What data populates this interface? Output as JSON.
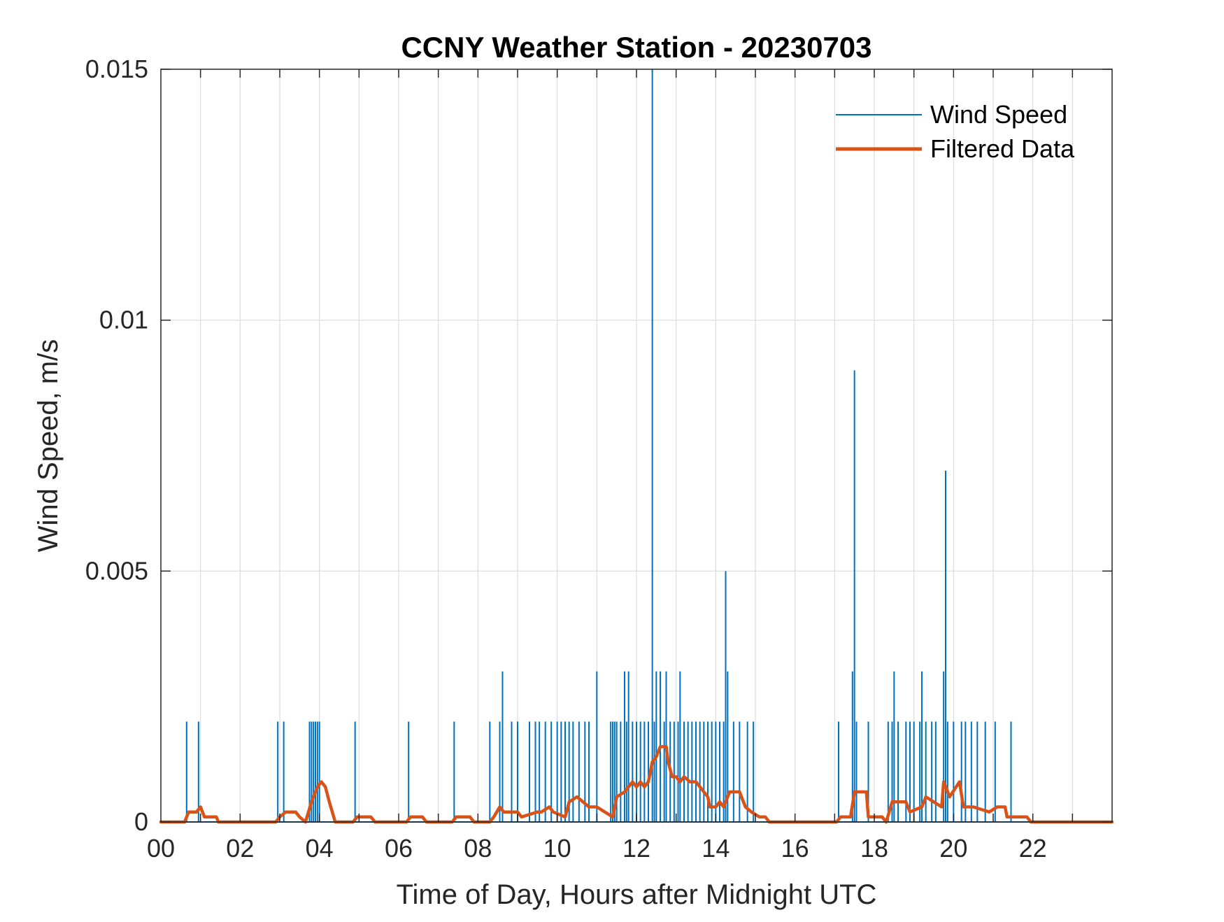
{
  "chart_data": {
    "type": "line",
    "title": "CCNY Weather Station - 20230703",
    "xlabel": "Time of Day, Hours after Midnight UTC",
    "ylabel": "Wind Speed, m/s",
    "xlim": [
      0,
      24
    ],
    "ylim": [
      0,
      0.015
    ],
    "x_ticks": [
      0,
      2,
      4,
      6,
      8,
      10,
      12,
      14,
      16,
      18,
      20,
      22
    ],
    "x_tick_labels": [
      "00",
      "02",
      "04",
      "06",
      "08",
      "10",
      "12",
      "14",
      "16",
      "18",
      "20",
      "22"
    ],
    "y_ticks": [
      0,
      0.005,
      0.01,
      0.015
    ],
    "y_tick_labels": [
      "0",
      "0.005",
      "0.01",
      "0.015"
    ],
    "grid": true,
    "legend_position": "top-right",
    "series": [
      {
        "name": "Wind Speed",
        "color": "#0072BD",
        "style": "thin-spikes",
        "spikes": [
          [
            0.65,
            0.002
          ],
          [
            0.95,
            0.002
          ],
          [
            2.95,
            0.002
          ],
          [
            3.1,
            0.002
          ],
          [
            3.75,
            0.002
          ],
          [
            3.8,
            0.002
          ],
          [
            3.85,
            0.002
          ],
          [
            3.9,
            0.002
          ],
          [
            3.95,
            0.002
          ],
          [
            4.0,
            0.002
          ],
          [
            4.9,
            0.002
          ],
          [
            6.25,
            0.002
          ],
          [
            7.4,
            0.002
          ],
          [
            8.3,
            0.002
          ],
          [
            8.55,
            0.002
          ],
          [
            8.62,
            0.003
          ],
          [
            8.85,
            0.002
          ],
          [
            9.0,
            0.002
          ],
          [
            9.3,
            0.002
          ],
          [
            9.45,
            0.002
          ],
          [
            9.55,
            0.002
          ],
          [
            9.7,
            0.002
          ],
          [
            9.85,
            0.002
          ],
          [
            10.0,
            0.002
          ],
          [
            10.1,
            0.002
          ],
          [
            10.2,
            0.002
          ],
          [
            10.3,
            0.002
          ],
          [
            10.4,
            0.002
          ],
          [
            10.55,
            0.002
          ],
          [
            10.7,
            0.002
          ],
          [
            10.8,
            0.002
          ],
          [
            11.0,
            0.003
          ],
          [
            11.35,
            0.002
          ],
          [
            11.4,
            0.002
          ],
          [
            11.45,
            0.002
          ],
          [
            11.5,
            0.002
          ],
          [
            11.6,
            0.002
          ],
          [
            11.7,
            0.003
          ],
          [
            11.75,
            0.002
          ],
          [
            11.8,
            0.003
          ],
          [
            11.9,
            0.002
          ],
          [
            12.0,
            0.002
          ],
          [
            12.1,
            0.002
          ],
          [
            12.2,
            0.002
          ],
          [
            12.3,
            0.002
          ],
          [
            12.4,
            0.015
          ],
          [
            12.45,
            0.002
          ],
          [
            12.5,
            0.003
          ],
          [
            12.6,
            0.003
          ],
          [
            12.7,
            0.002
          ],
          [
            12.75,
            0.003
          ],
          [
            12.85,
            0.002
          ],
          [
            12.95,
            0.002
          ],
          [
            13.05,
            0.002
          ],
          [
            13.1,
            0.003
          ],
          [
            13.2,
            0.002
          ],
          [
            13.3,
            0.002
          ],
          [
            13.4,
            0.002
          ],
          [
            13.5,
            0.002
          ],
          [
            13.6,
            0.002
          ],
          [
            13.7,
            0.002
          ],
          [
            13.8,
            0.002
          ],
          [
            13.9,
            0.002
          ],
          [
            14.0,
            0.002
          ],
          [
            14.1,
            0.002
          ],
          [
            14.2,
            0.002
          ],
          [
            14.25,
            0.005
          ],
          [
            14.3,
            0.003
          ],
          [
            14.45,
            0.002
          ],
          [
            14.6,
            0.002
          ],
          [
            14.8,
            0.002
          ],
          [
            14.95,
            0.002
          ],
          [
            17.1,
            0.002
          ],
          [
            17.45,
            0.003
          ],
          [
            17.5,
            0.009
          ],
          [
            17.55,
            0.002
          ],
          [
            17.85,
            0.002
          ],
          [
            18.35,
            0.002
          ],
          [
            18.45,
            0.002
          ],
          [
            18.5,
            0.003
          ],
          [
            18.6,
            0.002
          ],
          [
            18.8,
            0.002
          ],
          [
            18.9,
            0.002
          ],
          [
            19.0,
            0.002
          ],
          [
            19.15,
            0.002
          ],
          [
            19.2,
            0.003
          ],
          [
            19.3,
            0.002
          ],
          [
            19.45,
            0.002
          ],
          [
            19.55,
            0.002
          ],
          [
            19.75,
            0.003
          ],
          [
            19.8,
            0.007
          ],
          [
            19.85,
            0.002
          ],
          [
            20.0,
            0.002
          ],
          [
            20.2,
            0.002
          ],
          [
            20.3,
            0.002
          ],
          [
            20.45,
            0.002
          ],
          [
            20.6,
            0.002
          ],
          [
            20.8,
            0.002
          ],
          [
            21.05,
            0.002
          ],
          [
            21.45,
            0.002
          ]
        ]
      },
      {
        "name": "Filtered Data",
        "color": "#D95319",
        "style": "thick-line",
        "x": [
          0.0,
          0.6,
          0.7,
          0.9,
          1.0,
          1.1,
          1.4,
          1.45,
          2.9,
          3.0,
          3.15,
          3.4,
          3.5,
          3.65,
          3.8,
          3.95,
          4.05,
          4.15,
          4.25,
          4.4,
          4.5,
          4.85,
          4.95,
          5.3,
          5.4,
          6.2,
          6.3,
          6.6,
          6.7,
          7.35,
          7.45,
          7.8,
          7.9,
          8.3,
          8.4,
          8.55,
          8.65,
          9.0,
          9.1,
          9.5,
          9.6,
          9.8,
          9.9,
          10.2,
          10.3,
          10.5,
          10.8,
          11.0,
          11.2,
          11.4,
          11.5,
          11.7,
          11.8,
          11.9,
          12.0,
          12.1,
          12.2,
          12.3,
          12.4,
          12.5,
          12.6,
          12.75,
          12.8,
          12.9,
          13.0,
          13.1,
          13.2,
          13.35,
          13.5,
          13.6,
          13.7,
          13.8,
          13.85,
          14.0,
          14.1,
          14.2,
          14.35,
          14.55,
          14.6,
          14.75,
          14.9,
          15.1,
          15.25,
          15.35,
          17.05,
          17.15,
          17.4,
          17.5,
          17.8,
          17.85,
          18.2,
          18.3,
          18.45,
          18.8,
          18.9,
          19.2,
          19.3,
          19.5,
          19.7,
          19.75,
          19.9,
          20.15,
          20.25,
          20.5,
          20.9,
          21.1,
          21.3,
          21.35,
          21.85,
          21.95,
          24.0
        ],
        "y": [
          0.0,
          0.0,
          0.0002,
          0.0002,
          0.0003,
          0.0001,
          0.0001,
          0.0,
          0.0,
          0.0001,
          0.0002,
          0.0002,
          0.0001,
          0.0,
          0.0004,
          0.0007,
          0.0008,
          0.0007,
          0.0004,
          0.0,
          0.0,
          0.0,
          0.0001,
          0.0001,
          0.0,
          0.0,
          0.0001,
          0.0001,
          0.0,
          0.0,
          0.0001,
          0.0001,
          0.0,
          0.0,
          0.0001,
          0.0003,
          0.0002,
          0.0002,
          0.0001,
          0.0002,
          0.0002,
          0.0003,
          0.0002,
          0.0001,
          0.0004,
          0.0005,
          0.0003,
          0.0003,
          0.0002,
          0.0001,
          0.0005,
          0.0006,
          0.0007,
          0.0008,
          0.0007,
          0.0008,
          0.0007,
          0.0008,
          0.0012,
          0.0013,
          0.0015,
          0.0015,
          0.0012,
          0.0009,
          0.0009,
          0.0008,
          0.0009,
          0.0008,
          0.0008,
          0.0007,
          0.0006,
          0.0005,
          0.0003,
          0.0003,
          0.0004,
          0.0003,
          0.0006,
          0.0006,
          0.0006,
          0.0003,
          0.0002,
          0.0001,
          0.0001,
          0.0,
          0.0,
          0.0001,
          0.0001,
          0.0006,
          0.0006,
          0.0001,
          0.0001,
          0.0,
          0.0004,
          0.0004,
          0.0002,
          0.0003,
          0.0005,
          0.0004,
          0.0003,
          0.0008,
          0.0005,
          0.0008,
          0.0003,
          0.0003,
          0.0002,
          0.0003,
          0.0003,
          0.0001,
          0.0001,
          0.0,
          0.0
        ]
      }
    ]
  }
}
